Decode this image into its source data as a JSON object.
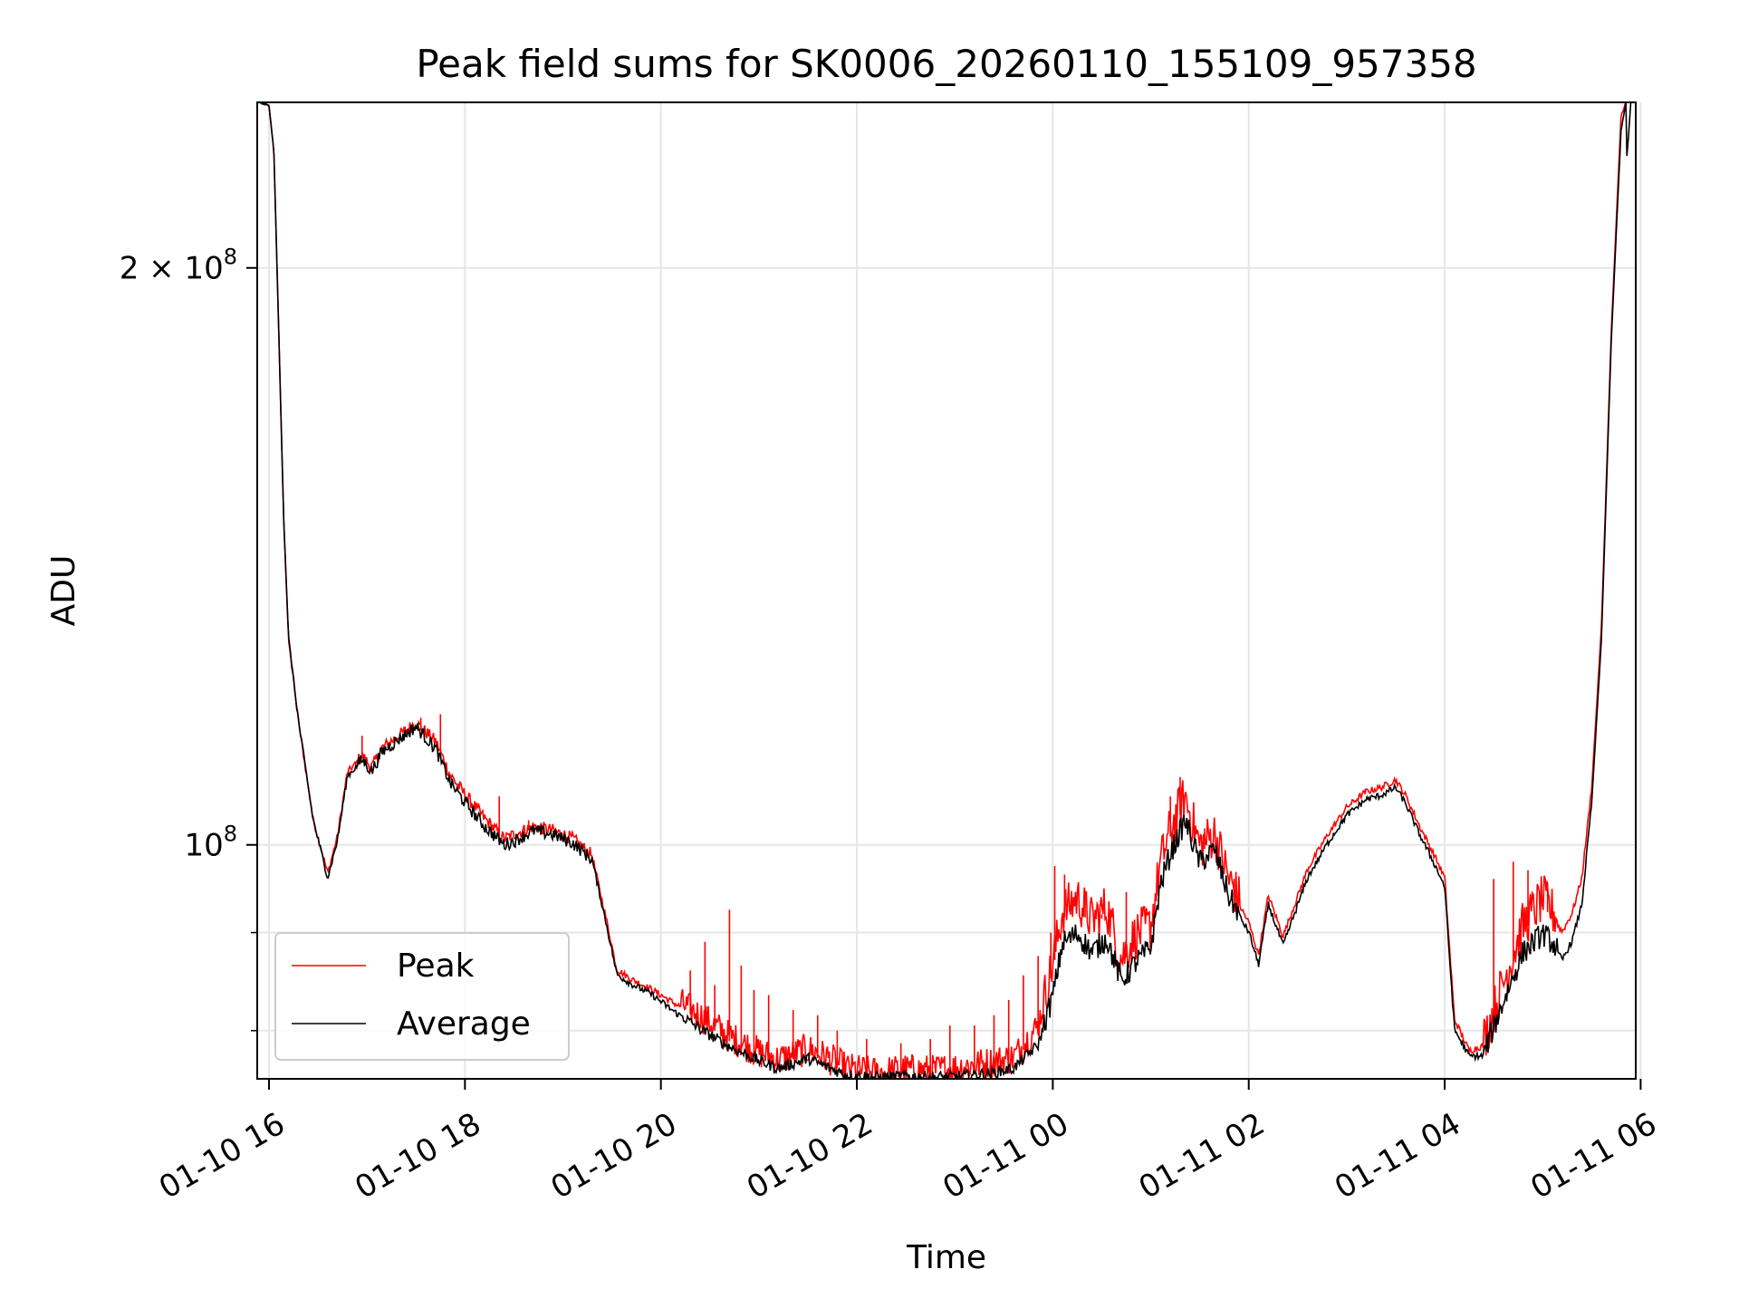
{
  "chart_data": {
    "type": "line",
    "title": "Peak field sums for SK0006_20260110_155109_957358",
    "xlabel": "Time",
    "ylabel": "ADU",
    "yscale": "log",
    "ylim": [
      75500000,
      244000000
    ],
    "xlim_hours": [
      15.88,
      29.95
    ],
    "x_unit": "hours since 2026-01-10 00:00",
    "grid": true,
    "legend_position": "lower-left",
    "x_ticks": [
      {
        "hour": 16,
        "label": "01-10 16"
      },
      {
        "hour": 18,
        "label": "01-10 18"
      },
      {
        "hour": 20,
        "label": "01-10 20"
      },
      {
        "hour": 22,
        "label": "01-10 22"
      },
      {
        "hour": 24,
        "label": "01-11 00"
      },
      {
        "hour": 26,
        "label": "01-11 02"
      },
      {
        "hour": 28,
        "label": "01-11 04"
      },
      {
        "hour": 30,
        "label": "01-11 06"
      }
    ],
    "y_major_ticks": [
      {
        "value": 100000000,
        "mantissa": "",
        "base": "10",
        "exp": "8"
      },
      {
        "value": 200000000,
        "mantissa": "2 × ",
        "base": "10",
        "exp": "8"
      }
    ],
    "y_minor_ticks": [
      80000000,
      90000000
    ],
    "series": [
      {
        "name": "Peak",
        "color": "#ff0000",
        "x": [
          15.88,
          16.0,
          16.05,
          16.1,
          16.15,
          16.2,
          16.3,
          16.45,
          16.6,
          16.7,
          16.8,
          16.95,
          17.05,
          17.15,
          17.3,
          17.5,
          17.7,
          17.85,
          18.0,
          18.2,
          18.4,
          18.5,
          18.7,
          18.9,
          19.1,
          19.3,
          19.45,
          19.55,
          19.7,
          19.9,
          20.1,
          20.4,
          20.7,
          21.0,
          21.2,
          21.5,
          21.7,
          21.9,
          22.2,
          22.5,
          22.8,
          23.1,
          23.4,
          23.6,
          23.85,
          24.0,
          24.1,
          24.25,
          24.4,
          24.55,
          24.7,
          24.85,
          25.0,
          25.1,
          25.2,
          25.35,
          25.5,
          25.65,
          25.8,
          26.0,
          26.1,
          26.2,
          26.35,
          26.6,
          26.8,
          27.0,
          27.2,
          27.35,
          27.5,
          27.6,
          27.75,
          27.9,
          28.0,
          28.1,
          28.25,
          28.4,
          28.6,
          28.8,
          29.0,
          29.1,
          29.2,
          29.3,
          29.4,
          29.5,
          29.6,
          29.7,
          29.8,
          29.85,
          29.9,
          29.95
        ],
        "y": [
          244000000,
          243000000,
          230000000,
          185000000,
          148000000,
          128000000,
          116000000,
          103000000,
          96500000,
          101000000,
          109000000,
          111000000,
          109500000,
          112000000,
          113500000,
          115500000,
          113000000,
          108500000,
          106000000,
          103000000,
          100500000,
          101000000,
          102000000,
          101500000,
          100500000,
          98500000,
          91000000,
          86000000,
          85000000,
          84000000,
          82800000,
          81000000,
          79000000,
          77500000,
          76800000,
          77800000,
          77000000,
          76000000,
          75600000,
          75900000,
          75800000,
          76200000,
          76600000,
          77000000,
          80000000,
          86000000,
          91500000,
          93000000,
          90500000,
          92000000,
          86500000,
          89000000,
          90000000,
          97000000,
          101000000,
          105000000,
          99000000,
          100500000,
          95000000,
          91000000,
          87500000,
          94000000,
          89500000,
          97000000,
          101000000,
          104500000,
          106500000,
          107000000,
          108000000,
          106000000,
          102000000,
          98500000,
          96000000,
          81000000,
          78000000,
          78500000,
          84000000,
          90000000,
          93000000,
          91500000,
          90000000,
          92000000,
          96000000,
          107000000,
          130000000,
          185000000,
          240000000,
          244000000,
          244000000,
          244000000
        ],
        "spikes": [
          [
            16.95,
            114000000
          ],
          [
            17.55,
            116500000
          ],
          [
            17.75,
            117000000
          ],
          [
            18.35,
            106000000
          ],
          [
            18.65,
            103000000
          ],
          [
            20.3,
            86000000
          ],
          [
            20.45,
            89000000
          ],
          [
            20.55,
            84500000
          ],
          [
            20.7,
            92500000
          ],
          [
            20.82,
            86500000
          ],
          [
            20.95,
            84000000
          ],
          [
            21.1,
            83500000
          ],
          [
            21.35,
            82000000
          ],
          [
            21.6,
            81500000
          ],
          [
            21.8,
            80000000
          ],
          [
            22.1,
            79200000
          ],
          [
            22.45,
            78800000
          ],
          [
            22.75,
            79200000
          ],
          [
            22.95,
            80500000
          ],
          [
            23.2,
            80500000
          ],
          [
            23.4,
            81500000
          ],
          [
            23.55,
            83000000
          ],
          [
            23.7,
            85500000
          ],
          [
            23.85,
            87500000
          ],
          [
            23.98,
            90000000
          ],
          [
            24.02,
            97500000
          ],
          [
            24.12,
            96500000
          ],
          [
            24.33,
            94500000
          ],
          [
            24.5,
            92000000
          ],
          [
            24.75,
            94500000
          ],
          [
            25.2,
            106000000
          ],
          [
            25.3,
            108500000
          ],
          [
            25.55,
            102000000
          ],
          [
            25.85,
            96000000
          ],
          [
            28.5,
            96000000
          ],
          [
            28.7,
            98000000
          ],
          [
            28.85,
            97000000
          ],
          [
            29.05,
            95500000
          ]
        ]
      },
      {
        "name": "Average",
        "color": "#000000",
        "x": [
          15.88,
          16.0,
          16.05,
          16.1,
          16.15,
          16.2,
          16.3,
          16.45,
          16.6,
          16.7,
          16.8,
          16.95,
          17.05,
          17.15,
          17.3,
          17.5,
          17.7,
          17.85,
          18.0,
          18.2,
          18.4,
          18.5,
          18.7,
          18.9,
          19.1,
          19.3,
          19.45,
          19.55,
          19.7,
          19.9,
          20.1,
          20.4,
          20.7,
          21.0,
          21.2,
          21.5,
          21.7,
          21.9,
          22.2,
          22.5,
          22.8,
          23.1,
          23.4,
          23.6,
          23.85,
          24.0,
          24.1,
          24.25,
          24.4,
          24.55,
          24.7,
          24.85,
          25.0,
          25.1,
          25.2,
          25.35,
          25.5,
          25.65,
          25.8,
          26.0,
          26.1,
          26.2,
          26.35,
          26.6,
          26.8,
          27.0,
          27.2,
          27.35,
          27.5,
          27.6,
          27.75,
          27.9,
          28.0,
          28.1,
          28.25,
          28.4,
          28.6,
          28.8,
          29.0,
          29.1,
          29.2,
          29.3,
          29.4,
          29.5,
          29.6,
          29.7,
          29.8,
          29.85,
          29.86,
          29.87,
          29.9,
          29.95
        ],
        "y": [
          244000000,
          243000000,
          230000000,
          185000000,
          148000000,
          128000000,
          116000000,
          103000000,
          96000000,
          100500000,
          108500000,
          110500000,
          109000000,
          111500000,
          113000000,
          115000000,
          112000000,
          107500000,
          105000000,
          102000000,
          99800000,
          100200000,
          101500000,
          101000000,
          100000000,
          98000000,
          90500000,
          85500000,
          84500000,
          83500000,
          82000000,
          80000000,
          78300000,
          77000000,
          76300000,
          77200000,
          76400000,
          75700000,
          75500000,
          75600000,
          75500000,
          75600000,
          75900000,
          76300000,
          78500000,
          83000000,
          88500000,
          89500000,
          87500000,
          89000000,
          84500000,
          86500000,
          88000000,
          95000000,
          98500000,
          102500000,
          97500000,
          99000000,
          93500000,
          90000000,
          86500000,
          93000000,
          88500000,
          96000000,
          100000000,
          103500000,
          105500000,
          106000000,
          107000000,
          105000000,
          101000000,
          97500000,
          95000000,
          80000000,
          77500000,
          77500000,
          82500000,
          87500000,
          89500000,
          88500000,
          87000000,
          89000000,
          93000000,
          105000000,
          128000000,
          183000000,
          236000000,
          244000000,
          228000000,
          232000000,
          244000000,
          244000000
        ]
      }
    ]
  }
}
